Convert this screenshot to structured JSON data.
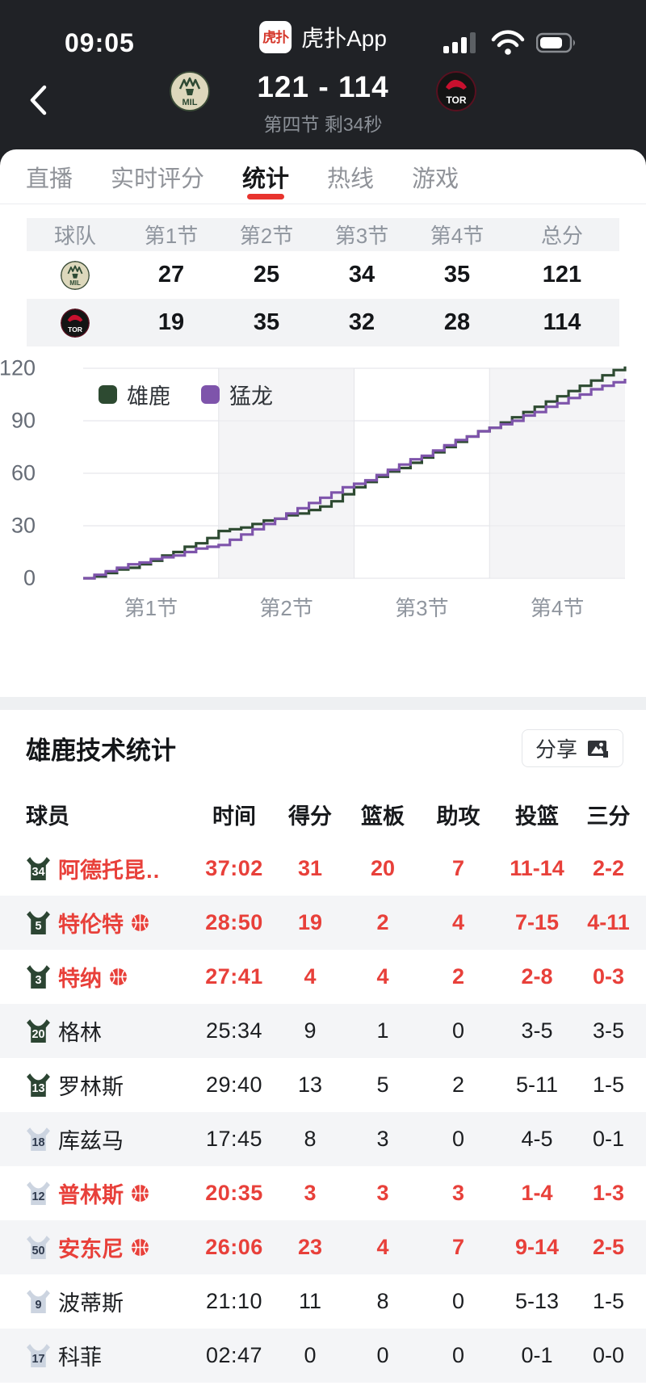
{
  "status_bar": {
    "time": "09:05",
    "app_name": "虎扑App",
    "app_icon_text": "虎扑",
    "icons": [
      "signal-bars-icon",
      "wifi-icon",
      "battery-icon"
    ],
    "battery_level_percent": 75
  },
  "scoreboard": {
    "score": "121 - 114",
    "period_text": "第四节 剩34秒",
    "home_team": {
      "abbr": "MIL",
      "name": "雄鹿"
    },
    "away_team": {
      "abbr": "TOR",
      "name": "猛龙"
    }
  },
  "tabs": [
    {
      "label": "直播",
      "active": false
    },
    {
      "label": "实时评分",
      "active": false
    },
    {
      "label": "统计",
      "active": true
    },
    {
      "label": "热线",
      "active": false
    },
    {
      "label": "游戏",
      "active": false
    }
  ],
  "quarter_table": {
    "headers": [
      "球队",
      "第1节",
      "第2节",
      "第3节",
      "第4节",
      "总分"
    ],
    "rows": [
      {
        "team": "MIL",
        "values": [
          "27",
          "25",
          "34",
          "35",
          "121"
        ]
      },
      {
        "team": "TOR",
        "values": [
          "19",
          "35",
          "32",
          "28",
          "114"
        ]
      }
    ]
  },
  "chart_data": {
    "type": "line",
    "subtype": "step-cumulative-score",
    "ylim": [
      0,
      120
    ],
    "yticks": [
      0,
      30,
      60,
      90,
      120
    ],
    "x_minutes_range": [
      0,
      48
    ],
    "x_band_labels": [
      "第1节",
      "第2节",
      "第3节",
      "第4节"
    ],
    "grid": true,
    "legend_position": "top-left",
    "series": [
      {
        "name": "雄鹿",
        "color": "#2d4a31",
        "scores_by_minute": [
          0,
          1,
          3,
          5,
          6,
          8,
          10,
          13,
          15,
          18,
          20,
          23,
          27,
          28,
          29,
          31,
          33,
          34,
          36,
          37,
          39,
          41,
          44,
          48,
          52,
          55,
          58,
          61,
          63,
          66,
          69,
          72,
          75,
          78,
          81,
          84,
          86,
          89,
          92,
          95,
          98,
          101,
          104,
          107,
          110,
          113,
          116,
          119,
          121
        ]
      },
      {
        "name": "猛龙",
        "color": "#7e54ab",
        "scores_by_minute": [
          0,
          2,
          4,
          6,
          8,
          9,
          11,
          12,
          13,
          15,
          17,
          18,
          19,
          22,
          25,
          28,
          31,
          34,
          37,
          40,
          43,
          46,
          49,
          52,
          54,
          56,
          59,
          62,
          65,
          68,
          70,
          73,
          76,
          79,
          81,
          84,
          86,
          88,
          90,
          93,
          95,
          98,
          100,
          103,
          105,
          108,
          110,
          112,
          114
        ]
      }
    ],
    "quarter_end_totals": {
      "雄鹿": [
        27,
        52,
        86,
        121
      ],
      "猛龙": [
        19,
        54,
        86,
        114
      ]
    }
  },
  "stats_section": {
    "title": "雄鹿技术统计",
    "share_label": "分享",
    "headers": [
      "球员",
      "时间",
      "得分",
      "篮板",
      "助攻",
      "投篮",
      "三分"
    ],
    "players": [
      {
        "number": "34",
        "name": "阿德托昆…",
        "on_court": true,
        "has_ball": false,
        "starter": true,
        "time": "37:02",
        "points": "31",
        "rebounds": "20",
        "assists": "7",
        "fg": "11-14",
        "three": "2-2"
      },
      {
        "number": "5",
        "name": "特伦特",
        "on_court": true,
        "has_ball": true,
        "starter": true,
        "time": "28:50",
        "points": "19",
        "rebounds": "2",
        "assists": "4",
        "fg": "7-15",
        "three": "4-11"
      },
      {
        "number": "3",
        "name": "特纳",
        "on_court": true,
        "has_ball": true,
        "starter": true,
        "time": "27:41",
        "points": "4",
        "rebounds": "4",
        "assists": "2",
        "fg": "2-8",
        "three": "0-3"
      },
      {
        "number": "20",
        "name": "格林",
        "on_court": false,
        "has_ball": false,
        "starter": true,
        "time": "25:34",
        "points": "9",
        "rebounds": "1",
        "assists": "0",
        "fg": "3-5",
        "three": "3-5"
      },
      {
        "number": "13",
        "name": "罗林斯",
        "on_court": false,
        "has_ball": false,
        "starter": true,
        "time": "29:40",
        "points": "13",
        "rebounds": "5",
        "assists": "2",
        "fg": "5-11",
        "three": "1-5"
      },
      {
        "number": "18",
        "name": "库兹马",
        "on_court": false,
        "has_ball": false,
        "starter": false,
        "time": "17:45",
        "points": "8",
        "rebounds": "3",
        "assists": "0",
        "fg": "4-5",
        "three": "0-1"
      },
      {
        "number": "12",
        "name": "普林斯",
        "on_court": true,
        "has_ball": true,
        "starter": false,
        "time": "20:35",
        "points": "3",
        "rebounds": "3",
        "assists": "3",
        "fg": "1-4",
        "three": "1-3"
      },
      {
        "number": "50",
        "name": "安东尼",
        "on_court": true,
        "has_ball": true,
        "starter": false,
        "time": "26:06",
        "points": "23",
        "rebounds": "4",
        "assists": "7",
        "fg": "9-14",
        "three": "2-5"
      },
      {
        "number": "9",
        "name": "波蒂斯",
        "on_court": false,
        "has_ball": false,
        "starter": false,
        "time": "21:10",
        "points": "11",
        "rebounds": "8",
        "assists": "0",
        "fg": "5-13",
        "three": "1-5"
      },
      {
        "number": "17",
        "name": "科菲",
        "on_court": false,
        "has_ball": false,
        "starter": false,
        "time": "02:47",
        "points": "0",
        "rebounds": "0",
        "assists": "0",
        "fg": "0-1",
        "three": "0-0"
      }
    ]
  },
  "colors": {
    "accent_red": "#e8403a",
    "dark_header_bg": "#202226",
    "bucks_green": "#2d4a31",
    "raptors_purple": "#7e54ab",
    "row_alt_bg": "#f4f5f7",
    "table_header_bg": "#f2f3f5",
    "chart_band_gray": "#f4f4f6",
    "muted_text": "#8f959e",
    "starter_jersey": "#2c4533",
    "bench_jersey": "#ccd4e0"
  }
}
